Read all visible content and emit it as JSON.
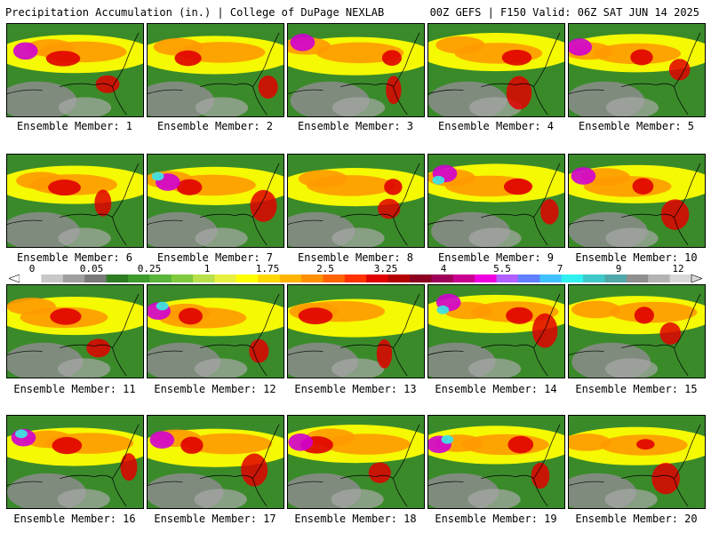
{
  "header": {
    "title": "Precipitation Accumulation (in.) | College of DuPage NEXLAB",
    "valid": "00Z GEFS | F150 Valid: 06Z SAT JUN 14 2025"
  },
  "legend": {
    "labels": [
      "0",
      "0.05",
      "0.25",
      "1",
      "1.75",
      "2.5",
      "3.25",
      "4",
      "5.5",
      "7",
      "9",
      "12"
    ],
    "colors": [
      "#ffffff",
      "#c8c8c8",
      "#a0a0a0",
      "#7a7a7a",
      "#2e7d22",
      "#3d9a2c",
      "#58b43a",
      "#7fc93c",
      "#b7e04a",
      "#e8f040",
      "#ffff00",
      "#ffd800",
      "#ffb400",
      "#ff9000",
      "#ff6400",
      "#ff3200",
      "#e00000",
      "#b40000",
      "#8c0020",
      "#a0005a",
      "#c80090",
      "#f000e0",
      "#b060ff",
      "#6080ff",
      "#40c0ff",
      "#30f0f0",
      "#40c8c8",
      "#50a8a8",
      "#909090",
      "#b4b4b4",
      "#d8d8d8"
    ]
  },
  "colors": {
    "background": "#ffffff",
    "land_low": "#3a8a2a",
    "gray_low": "#8c8c8c",
    "yellow": "#ffff00",
    "orange": "#ff9a00",
    "red": "#e00000",
    "magenta": "#d000d0",
    "cyan": "#40e0e0"
  },
  "members": [
    {
      "label": "Ensemble Member: 1"
    },
    {
      "label": "Ensemble Member: 2"
    },
    {
      "label": "Ensemble Member: 3"
    },
    {
      "label": "Ensemble Member: 4"
    },
    {
      "label": "Ensemble Member: 5"
    },
    {
      "label": "Ensemble Member: 6"
    },
    {
      "label": "Ensemble Member: 7"
    },
    {
      "label": "Ensemble Member: 8"
    },
    {
      "label": "Ensemble Member: 9"
    },
    {
      "label": "Ensemble Member: 10"
    },
    {
      "label": "Ensemble Member: 11"
    },
    {
      "label": "Ensemble Member: 12"
    },
    {
      "label": "Ensemble Member: 13"
    },
    {
      "label": "Ensemble Member: 14"
    },
    {
      "label": "Ensemble Member: 15"
    },
    {
      "label": "Ensemble Member: 16"
    },
    {
      "label": "Ensemble Member: 17"
    },
    {
      "label": "Ensemble Member: 18"
    },
    {
      "label": "Ensemble Member: 19"
    },
    {
      "label": "Ensemble Member: 20"
    }
  ]
}
